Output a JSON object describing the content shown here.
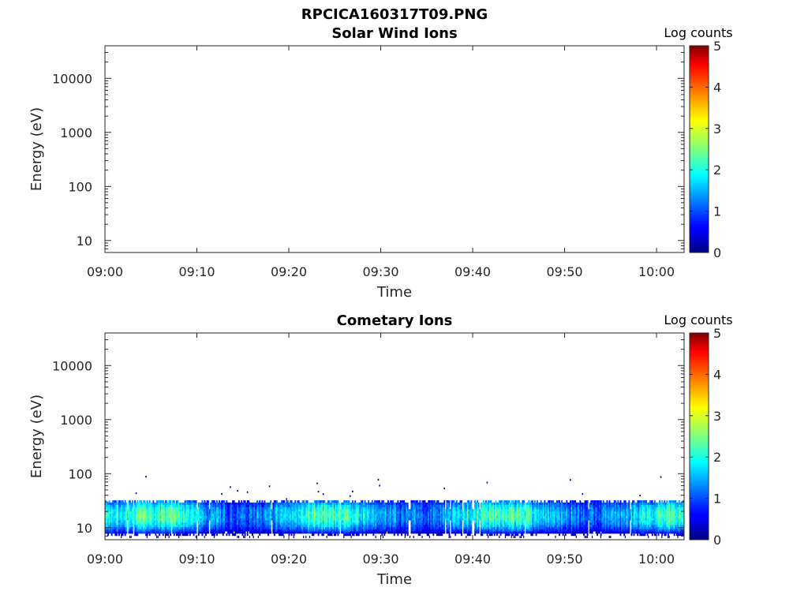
{
  "figure": {
    "title": "RPCICA160317T09.PNG"
  },
  "chart_data": [
    {
      "type": "heatmap",
      "title": "Solar Wind Ions",
      "xlabel": "Time",
      "ylabel": "Energy (eV)",
      "x_ticks": [
        "09:00",
        "09:10",
        "09:20",
        "09:30",
        "09:40",
        "09:50",
        "10:00"
      ],
      "x_range_minutes": [
        0,
        63
      ],
      "y_scale": "log",
      "y_ticks": [
        10,
        100,
        1000,
        10000
      ],
      "y_tick_labels": [
        "10",
        "100",
        "1000",
        "10000"
      ],
      "y_range": [
        6,
        40000
      ],
      "colorbar": {
        "label": "Log counts",
        "ticks": [
          "0",
          "1",
          "2",
          "3",
          "4",
          "5"
        ],
        "range": [
          0,
          5
        ],
        "colormap": "jet"
      },
      "band": null
    },
    {
      "type": "heatmap",
      "title": "Cometary Ions",
      "xlabel": "Time",
      "ylabel": "Energy (eV)",
      "x_ticks": [
        "09:00",
        "09:10",
        "09:20",
        "09:30",
        "09:40",
        "09:50",
        "10:00"
      ],
      "x_range_minutes": [
        0,
        63
      ],
      "y_scale": "log",
      "y_ticks": [
        10,
        100,
        1000,
        10000
      ],
      "y_tick_labels": [
        "10",
        "100",
        "1000",
        "10000"
      ],
      "y_range": [
        6,
        40000
      ],
      "colorbar": {
        "label": "Log counts",
        "ticks": [
          "0",
          "1",
          "2",
          "3",
          "4",
          "5"
        ],
        "range": [
          0,
          5
        ],
        "colormap": "jet"
      },
      "band": {
        "energy_min": 8,
        "energy_max": 30,
        "peak_energy": 17,
        "peak_log_counts": 2.3
      }
    }
  ]
}
